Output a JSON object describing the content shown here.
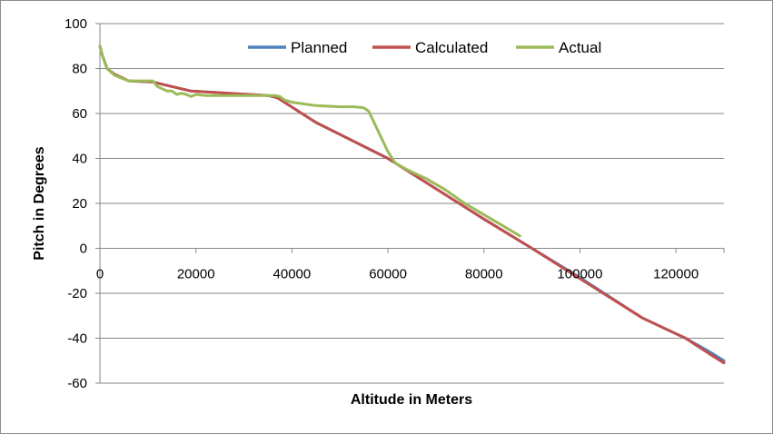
{
  "chart_data": {
    "type": "line",
    "title": "",
    "xlabel": "Altitude in Meters",
    "ylabel": "Pitch in Degrees",
    "xlim": [
      0,
      130000
    ],
    "ylim": [
      -60,
      100
    ],
    "x_ticks": [
      0,
      20000,
      40000,
      60000,
      80000,
      100000,
      120000
    ],
    "y_ticks": [
      -60,
      -40,
      -20,
      0,
      20,
      40,
      60,
      80,
      100
    ],
    "grid": "horizontal",
    "legend_position": "top",
    "series": [
      {
        "name": "Planned",
        "color": "#4f81bd",
        "x": [
          0,
          500,
          1500,
          3000,
          6000,
          11000,
          19000,
          35000,
          37000,
          45000,
          60000,
          80000,
          90000,
          100000,
          113000,
          122000,
          127000,
          130000
        ],
        "y": [
          90,
          86,
          80,
          77.5,
          74.5,
          74,
          70,
          68,
          67,
          56,
          40,
          13,
          0,
          -13,
          -31,
          -40,
          -46,
          -50
        ]
      },
      {
        "name": "Calculated",
        "color": "#c0504d",
        "x": [
          0,
          500,
          1500,
          3000,
          6000,
          11000,
          19000,
          35000,
          37000,
          45000,
          60000,
          80000,
          90000,
          100000,
          113000,
          122000,
          127000,
          130000
        ],
        "y": [
          90,
          86,
          80,
          77.5,
          74.5,
          74,
          70,
          68,
          67,
          56,
          40,
          13,
          0,
          -13.5,
          -31,
          -40,
          -47,
          -51
        ]
      },
      {
        "name": "Actual",
        "color": "#9bbb59",
        "x": [
          0,
          500,
          1500,
          3000,
          6000,
          11000,
          12000,
          13000,
          14000,
          15000,
          16000,
          17000,
          18000,
          19000,
          20000,
          22000,
          26000,
          35000,
          36500,
          37500,
          38500,
          40000,
          45000,
          50000,
          53000,
          55000,
          56000,
          58000,
          60000,
          61500,
          64000,
          68000,
          72000,
          76000,
          80000,
          84000,
          87500
        ],
        "y": [
          90,
          86,
          80,
          77,
          74.5,
          74.5,
          72,
          71,
          70,
          70,
          68.5,
          69,
          68.5,
          67.5,
          68.5,
          68,
          68,
          68,
          68,
          67.5,
          66,
          65,
          63.5,
          63,
          63,
          62.5,
          61,
          52,
          43,
          38,
          35,
          31,
          26,
          20,
          15,
          10,
          5.5
        ]
      }
    ]
  }
}
